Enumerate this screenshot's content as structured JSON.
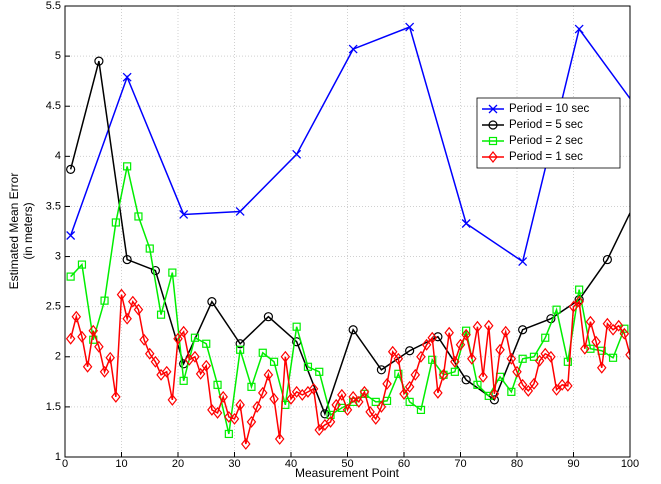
{
  "chart_data": {
    "type": "line",
    "xlabel": "Measurement Point",
    "ylabel": [
      "Estimated Mean Error",
      "(in meters)"
    ],
    "xlim": [
      0,
      100
    ],
    "ylim": [
      1,
      5.5
    ],
    "xticks": [
      0,
      10,
      20,
      30,
      40,
      50,
      60,
      70,
      80,
      90,
      100
    ],
    "yticks": [
      1,
      1.5,
      2,
      2.5,
      3,
      3.5,
      4,
      4.5,
      5,
      5.5
    ],
    "grid": true,
    "legend": "upper right",
    "series": [
      {
        "name": "Period = 10 sec",
        "color": "#0000ff",
        "marker": "x",
        "x": [
          1,
          11,
          21,
          31,
          41,
          51,
          61,
          71,
          81,
          91,
          101
        ],
        "values": [
          3.21,
          4.79,
          3.42,
          3.45,
          4.02,
          5.07,
          5.29,
          3.33,
          2.95,
          5.27,
          4.5
        ]
      },
      {
        "name": "Period = 5 sec",
        "color": "#000000",
        "marker": "circle",
        "x": [
          1,
          6,
          11,
          16,
          21,
          26,
          31,
          36,
          41,
          46,
          51,
          56,
          61,
          66,
          71,
          76,
          81,
          86,
          91,
          96,
          101
        ],
        "values": [
          3.87,
          4.95,
          2.97,
          2.86,
          1.93,
          2.55,
          2.13,
          2.4,
          2.15,
          1.43,
          2.27,
          1.87,
          2.06,
          2.2,
          1.77,
          1.57,
          2.27,
          2.38,
          2.57,
          2.97,
          3.55
        ]
      },
      {
        "name": "Period = 2 sec",
        "color": "#00ee00",
        "marker": "square",
        "x": [
          1,
          3,
          5,
          7,
          9,
          11,
          13,
          15,
          17,
          19,
          21,
          23,
          25,
          27,
          29,
          31,
          33,
          35,
          37,
          39,
          41,
          43,
          45,
          47,
          49,
          51,
          53,
          55,
          57,
          59,
          61,
          63,
          65,
          67,
          69,
          71,
          73,
          75,
          77,
          79,
          81,
          83,
          85,
          87,
          89,
          91,
          93,
          95,
          97,
          99
        ],
        "values": [
          2.8,
          2.92,
          2.17,
          2.56,
          3.34,
          3.9,
          3.4,
          3.08,
          2.42,
          2.84,
          1.76,
          2.19,
          2.13,
          1.72,
          1.23,
          2.07,
          1.7,
          2.04,
          1.95,
          1.52,
          2.3,
          1.9,
          1.85,
          1.42,
          1.49,
          1.55,
          1.63,
          1.55,
          1.56,
          1.83,
          1.55,
          1.47,
          1.97,
          1.82,
          1.85,
          2.26,
          1.72,
          1.61,
          1.8,
          1.65,
          1.98,
          2.0,
          2.19,
          2.47,
          1.95,
          2.67,
          2.08,
          2.06,
          1.99,
          2.28
        ]
      },
      {
        "name": "Period = 1 sec",
        "color": "#ff0000",
        "marker": "diamond",
        "x": [
          1,
          2,
          3,
          4,
          5,
          6,
          7,
          8,
          9,
          10,
          11,
          12,
          13,
          14,
          15,
          16,
          17,
          18,
          19,
          20,
          21,
          22,
          23,
          24,
          25,
          26,
          27,
          28,
          29,
          30,
          31,
          32,
          33,
          34,
          35,
          36,
          37,
          38,
          39,
          40,
          41,
          42,
          43,
          44,
          45,
          46,
          47,
          48,
          49,
          50,
          51,
          52,
          53,
          54,
          55,
          56,
          57,
          58,
          59,
          60,
          61,
          62,
          63,
          64,
          65,
          66,
          67,
          68,
          69,
          70,
          71,
          72,
          73,
          74,
          75,
          76,
          77,
          78,
          79,
          80,
          81,
          82,
          83,
          84,
          85,
          86,
          87,
          88,
          89,
          90,
          91,
          92,
          93,
          94,
          95,
          96,
          97,
          98,
          99,
          100
        ],
        "values": [
          2.18,
          2.4,
          2.2,
          1.9,
          2.26,
          2.1,
          1.85,
          1.99,
          1.6,
          2.62,
          2.38,
          2.55,
          2.47,
          2.17,
          2.03,
          1.95,
          1.82,
          1.85,
          1.57,
          2.18,
          2.25,
          1.97,
          2.0,
          1.83,
          1.91,
          1.47,
          1.44,
          1.6,
          1.4,
          1.38,
          1.52,
          1.13,
          1.35,
          1.5,
          1.64,
          1.82,
          1.58,
          1.18,
          2.0,
          1.58,
          1.65,
          1.62,
          1.65,
          1.68,
          1.27,
          1.32,
          1.35,
          1.52,
          1.62,
          1.47,
          1.6,
          1.55,
          1.65,
          1.45,
          1.38,
          1.5,
          1.73,
          2.05,
          1.98,
          1.63,
          1.7,
          1.82,
          2.0,
          2.12,
          2.19,
          1.64,
          1.82,
          2.24,
          1.95,
          2.12,
          2.22,
          1.98,
          2.3,
          1.8,
          2.31,
          1.63,
          2.07,
          2.25,
          1.98,
          1.85,
          1.72,
          1.66,
          1.73,
          1.96,
          2.03,
          2.0,
          1.67,
          1.72,
          1.71,
          2.5,
          2.55,
          2.08,
          2.35,
          2.15,
          1.89,
          2.33,
          2.27,
          2.31,
          2.23,
          2.02
        ]
      }
    ]
  }
}
